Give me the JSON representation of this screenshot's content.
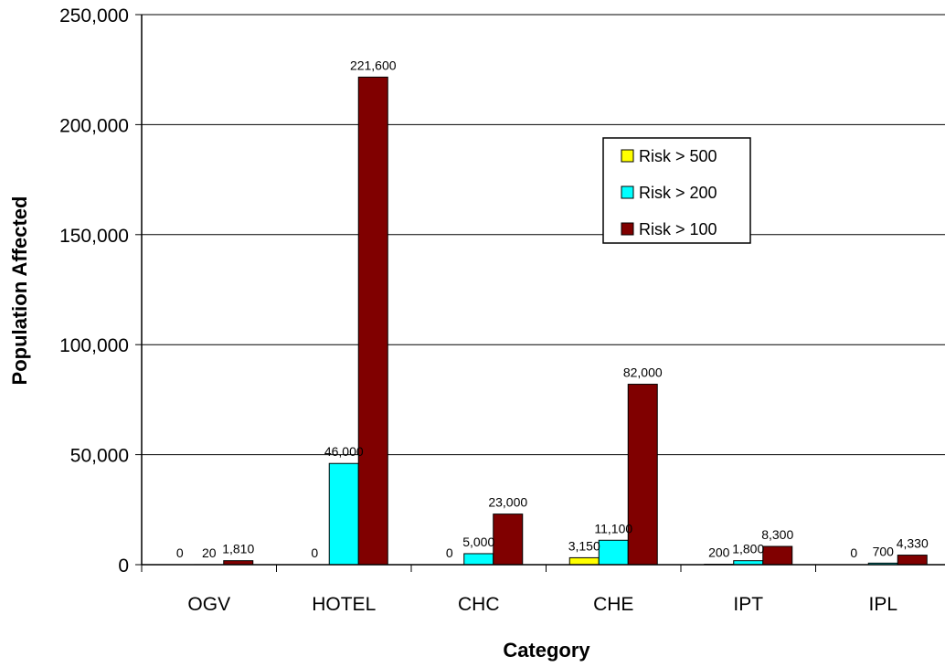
{
  "chart_data": {
    "type": "bar",
    "title": "",
    "xlabel": "Category",
    "ylabel": "Population Affected",
    "categories": [
      "OGV",
      "HOTEL",
      "CHC",
      "CHE",
      "IPT",
      "IPL"
    ],
    "series": [
      {
        "name": "Risk > 500",
        "color": "#FFFF00",
        "values": [
          0,
          0,
          0,
          3150,
          200,
          0
        ],
        "labels": [
          "0",
          "0",
          "0",
          "3,150",
          "200",
          "0"
        ]
      },
      {
        "name": "Risk > 200",
        "color": "#00FFFF",
        "values": [
          20,
          46000,
          5000,
          11100,
          1800,
          700
        ],
        "labels": [
          "20",
          "46,000",
          "5,000",
          "11,100",
          "1,800",
          "700"
        ]
      },
      {
        "name": "Risk > 100",
        "color": "#800000",
        "values": [
          1810,
          221600,
          23000,
          82000,
          8300,
          4330
        ],
        "labels": [
          "1,810",
          "221,600",
          "23,000",
          "82,000",
          "8,300",
          "4,330"
        ]
      }
    ],
    "ylim": [
      0,
      250000
    ],
    "yticks": [
      0,
      50000,
      100000,
      150000,
      200000,
      250000
    ],
    "ytick_labels": [
      "0",
      "50,000",
      "100,000",
      "150,000",
      "200,000",
      "250,000"
    ],
    "grid": true,
    "legend_position": "upper-right of center"
  }
}
